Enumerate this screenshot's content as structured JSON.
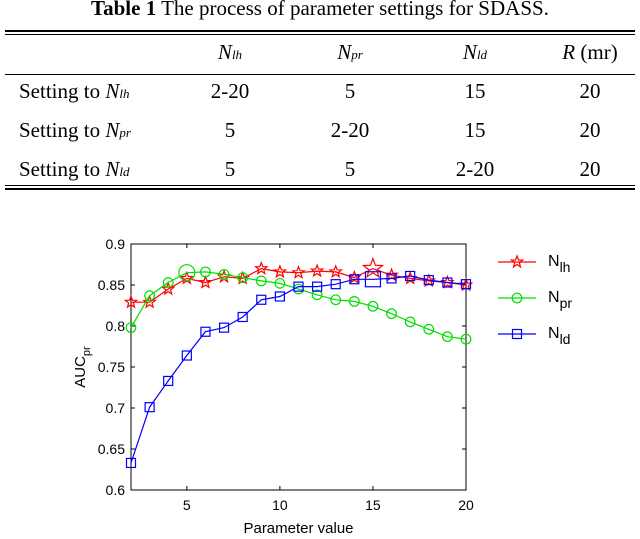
{
  "caption": {
    "bold": "Table 1",
    "text": " The process of parameter settings for SDASS."
  },
  "table": {
    "header": [
      {
        "main": "N",
        "sub": "lh"
      },
      {
        "main": "N",
        "sub": "pr"
      },
      {
        "main": "N",
        "sub": "ld"
      },
      {
        "main": "R",
        "unit": "(mr)"
      }
    ],
    "rows": [
      {
        "label": "Setting to ",
        "label_var": "N",
        "label_sub": "lh",
        "values": [
          "2-20",
          "5",
          "15",
          "20"
        ]
      },
      {
        "label": "Setting to ",
        "label_var": "N",
        "label_sub": "pr",
        "values": [
          "5",
          "2-20",
          "15",
          "20"
        ]
      },
      {
        "label": "Setting to ",
        "label_var": "N",
        "label_sub": "ld",
        "values": [
          "5",
          "5",
          "2-20",
          "20"
        ]
      }
    ]
  },
  "chart_data": {
    "type": "line",
    "xlabel": "Parameter value",
    "ylabel": "AUC",
    "ylabel_sub": "pr",
    "xlim": [
      2,
      20
    ],
    "ylim": [
      0.6,
      0.9
    ],
    "xticks": [
      5,
      10,
      15,
      20
    ],
    "yticks": [
      0.6,
      0.65,
      0.7,
      0.75,
      0.8,
      0.85,
      0.9
    ],
    "grid": false,
    "legend_position": "right",
    "x": [
      2,
      3,
      4,
      5,
      6,
      7,
      8,
      9,
      10,
      11,
      12,
      13,
      14,
      15,
      16,
      17,
      18,
      19,
      20
    ],
    "series": [
      {
        "name": "N",
        "name_sub": "lh",
        "color": "#ff0000",
        "marker": "star",
        "values": [
          0.829,
          0.829,
          0.845,
          0.858,
          0.853,
          0.86,
          0.858,
          0.87,
          0.866,
          0.865,
          0.867,
          0.866,
          0.859,
          0.87,
          0.862,
          0.858,
          0.855,
          0.853,
          0.85
        ],
        "highlight_index": 13
      },
      {
        "name": "N",
        "name_sub": "pr",
        "color": "#00dd00",
        "marker": "circle",
        "values": [
          0.798,
          0.837,
          0.853,
          0.865,
          0.866,
          0.863,
          0.859,
          0.855,
          0.852,
          0.845,
          0.838,
          0.832,
          0.83,
          0.824,
          0.815,
          0.805,
          0.796,
          0.787,
          0.784
        ],
        "highlight_index": 3
      },
      {
        "name": "N",
        "name_sub": "ld",
        "color": "#0000ff",
        "marker": "square",
        "values": [
          0.633,
          0.701,
          0.733,
          0.764,
          0.793,
          0.798,
          0.811,
          0.832,
          0.836,
          0.848,
          0.848,
          0.851,
          0.857,
          0.857,
          0.858,
          0.861,
          0.856,
          0.853,
          0.851
        ],
        "highlight_index": 13
      }
    ]
  }
}
